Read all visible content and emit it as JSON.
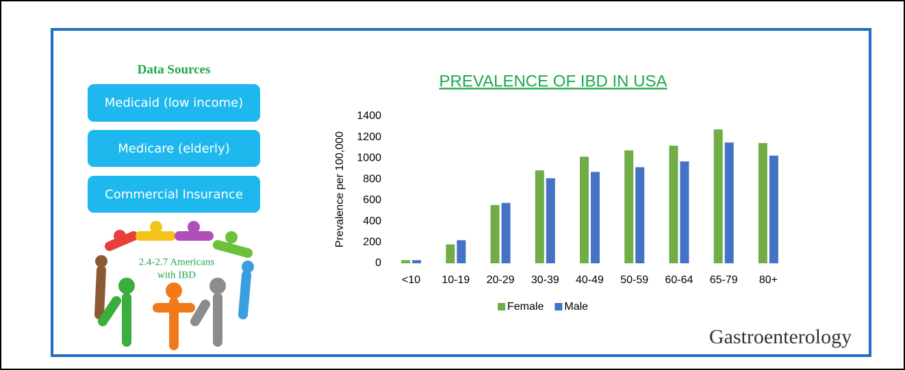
{
  "sidebar": {
    "heading": "Data Sources",
    "sources": [
      "Medicaid (low income)",
      "Medicare (elderly)",
      "Commercial Insurance"
    ],
    "caption": [
      "2.4-2.7 Americans",
      "with IBD"
    ]
  },
  "journal": "Gastroenterology",
  "chart_data": {
    "type": "bar",
    "title": "PREVALENCE OF IBD IN USA",
    "y_label": "Prevalence per 100,000",
    "categories": [
      "<10",
      "10-19",
      "20-29",
      "30-39",
      "40-49",
      "50-59",
      "60-64",
      "65-79",
      "80+"
    ],
    "series": [
      {
        "name": "Female",
        "color": "#70ad47",
        "values": [
          30,
          180,
          555,
          885,
          1015,
          1075,
          1120,
          1275,
          1145
        ]
      },
      {
        "name": "Male",
        "color": "#4472c4",
        "values": [
          30,
          220,
          575,
          810,
          870,
          915,
          970,
          1150,
          1025
        ]
      }
    ],
    "ylim": [
      0,
      1400
    ],
    "yticks": [
      0,
      200,
      400,
      600,
      800,
      1000,
      1200,
      1400
    ],
    "grid": false,
    "legend": "bottom"
  }
}
